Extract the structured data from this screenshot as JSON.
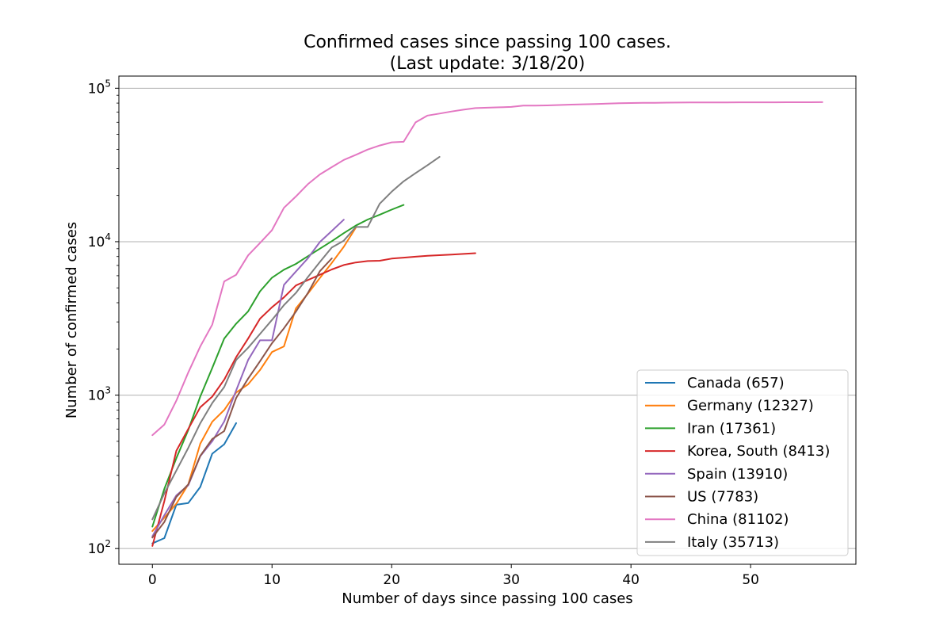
{
  "chart_data": {
    "type": "line",
    "title": "Confirmed cases since passing 100 cases.",
    "subtitle": "(Last update: 3/18/20)",
    "xlabel": "Number of days since passing 100 cases",
    "ylabel": "Number of confirmed cases",
    "xscale": "linear",
    "yscale": "log",
    "xlim": [
      -2.8,
      58.8
    ],
    "ylim": [
      79,
      120000
    ],
    "xticks": [
      0,
      10,
      20,
      30,
      40,
      50
    ],
    "yticks": [
      {
        "value": 100,
        "base": "10",
        "exp": "2"
      },
      {
        "value": 1000,
        "base": "10",
        "exp": "3"
      },
      {
        "value": 10000,
        "base": "10",
        "exp": "4"
      },
      {
        "value": 100000,
        "base": "10",
        "exp": "5"
      }
    ],
    "grid": "y-major",
    "legend_position": "lower-right",
    "series": [
      {
        "name": "Canada (657)",
        "color": "#1f77b4",
        "x": [
          0,
          1,
          2,
          3,
          4,
          5,
          6,
          7
        ],
        "y": [
          108,
          117,
          193,
          198,
          252,
          415,
          478,
          657
        ]
      },
      {
        "name": "Germany (12327)",
        "color": "#ff7f0e",
        "x": [
          0,
          1,
          2,
          3,
          4,
          5,
          6,
          7,
          8,
          9,
          10,
          11,
          12,
          13,
          14,
          15,
          16,
          17
        ],
        "y": [
          130,
          159,
          196,
          262,
          482,
          670,
          799,
          1040,
          1176,
          1457,
          1908,
          2078,
          3675,
          4585,
          5795,
          7272,
          9257,
          12327
        ]
      },
      {
        "name": "Iran (17361)",
        "color": "#2ca02c",
        "x": [
          0,
          1,
          2,
          3,
          4,
          5,
          6,
          7,
          8,
          9,
          10,
          11,
          12,
          13,
          14,
          15,
          16,
          17,
          18,
          19,
          20,
          21
        ],
        "y": [
          139,
          245,
          388,
          593,
          978,
          1501,
          2336,
          2922,
          3513,
          4747,
          5823,
          6566,
          7161,
          8042,
          9000,
          10075,
          11364,
          12729,
          13938,
          14991,
          16169,
          17361
        ]
      },
      {
        "name": "Korea, South (8413)",
        "color": "#d62728",
        "x": [
          0,
          1,
          2,
          3,
          4,
          5,
          6,
          7,
          8,
          9,
          10,
          11,
          12,
          13,
          14,
          15,
          16,
          17,
          18,
          19,
          20,
          21,
          22,
          23,
          24,
          25,
          26,
          27
        ],
        "y": [
          104,
          204,
          433,
          602,
          833,
          977,
          1261,
          1766,
          2337,
          3150,
          3736,
          4335,
          5186,
          5621,
          6088,
          6593,
          7041,
          7314,
          7478,
          7513,
          7755,
          7869,
          7979,
          8086,
          8162,
          8236,
          8320,
          8413
        ]
      },
      {
        "name": "Spain (13910)",
        "color": "#9467bd",
        "x": [
          0,
          1,
          2,
          3,
          4,
          5,
          6,
          7,
          8,
          9,
          10,
          11,
          12,
          13,
          14,
          15,
          16
        ],
        "y": [
          120,
          165,
          222,
          259,
          400,
          500,
          673,
          1073,
          1695,
          2277,
          2277,
          5232,
          6391,
          7798,
          9942,
          11748,
          13910
        ]
      },
      {
        "name": "US (7783)",
        "color": "#8c564b",
        "x": [
          0,
          1,
          2,
          3,
          4,
          5,
          6,
          7,
          8,
          9,
          10,
          11,
          12,
          13,
          14,
          15
        ],
        "y": [
          118,
          149,
          217,
          262,
          402,
          518,
          583,
          959,
          1281,
          1663,
          2179,
          2727,
          3499,
          4632,
          6421,
          7783
        ]
      },
      {
        "name": "China (81102)",
        "color": "#e377c2",
        "x": [
          0,
          1,
          2,
          3,
          4,
          5,
          6,
          7,
          8,
          9,
          10,
          11,
          12,
          13,
          14,
          15,
          16,
          17,
          18,
          19,
          20,
          21,
          22,
          23,
          24,
          25,
          26,
          27,
          28,
          29,
          30,
          31,
          32,
          33,
          34,
          35,
          36,
          37,
          38,
          39,
          40,
          41,
          42,
          43,
          44,
          45,
          46,
          47,
          48,
          49,
          50,
          51,
          52,
          53,
          54,
          55,
          56
        ],
        "y": [
          548,
          643,
          920,
          1406,
          2075,
          2877,
          5509,
          6087,
          8141,
          9802,
          11891,
          16630,
          19716,
          23707,
          27440,
          30587,
          34110,
          36814,
          39829,
          42354,
          44386,
          44759,
          59895,
          66358,
          68413,
          70513,
          72434,
          74211,
          74619,
          75077,
          75550,
          77001,
          77022,
          77241,
          77754,
          78166,
          78600,
          78928,
          79356,
          79932,
          80136,
          80261,
          80386,
          80537,
          80690,
          80770,
          80823,
          80860,
          80887,
          80921,
          80932,
          80945,
          80977,
          81003,
          81033,
          81058,
          81102
        ]
      },
      {
        "name": "Italy (35713)",
        "color": "#7f7f7f",
        "x": [
          0,
          1,
          2,
          3,
          4,
          5,
          6,
          7,
          8,
          9,
          10,
          11,
          12,
          13,
          14,
          15,
          16,
          17,
          18,
          19,
          20,
          21,
          22,
          23,
          24
        ],
        "y": [
          155,
          229,
          322,
          453,
          655,
          888,
          1128,
          1694,
          2036,
          2502,
          3089,
          3858,
          4636,
          5883,
          7375,
          9172,
          10149,
          12462,
          12462,
          17660,
          21157,
          24747,
          27980,
          31506,
          35713
        ]
      }
    ]
  }
}
